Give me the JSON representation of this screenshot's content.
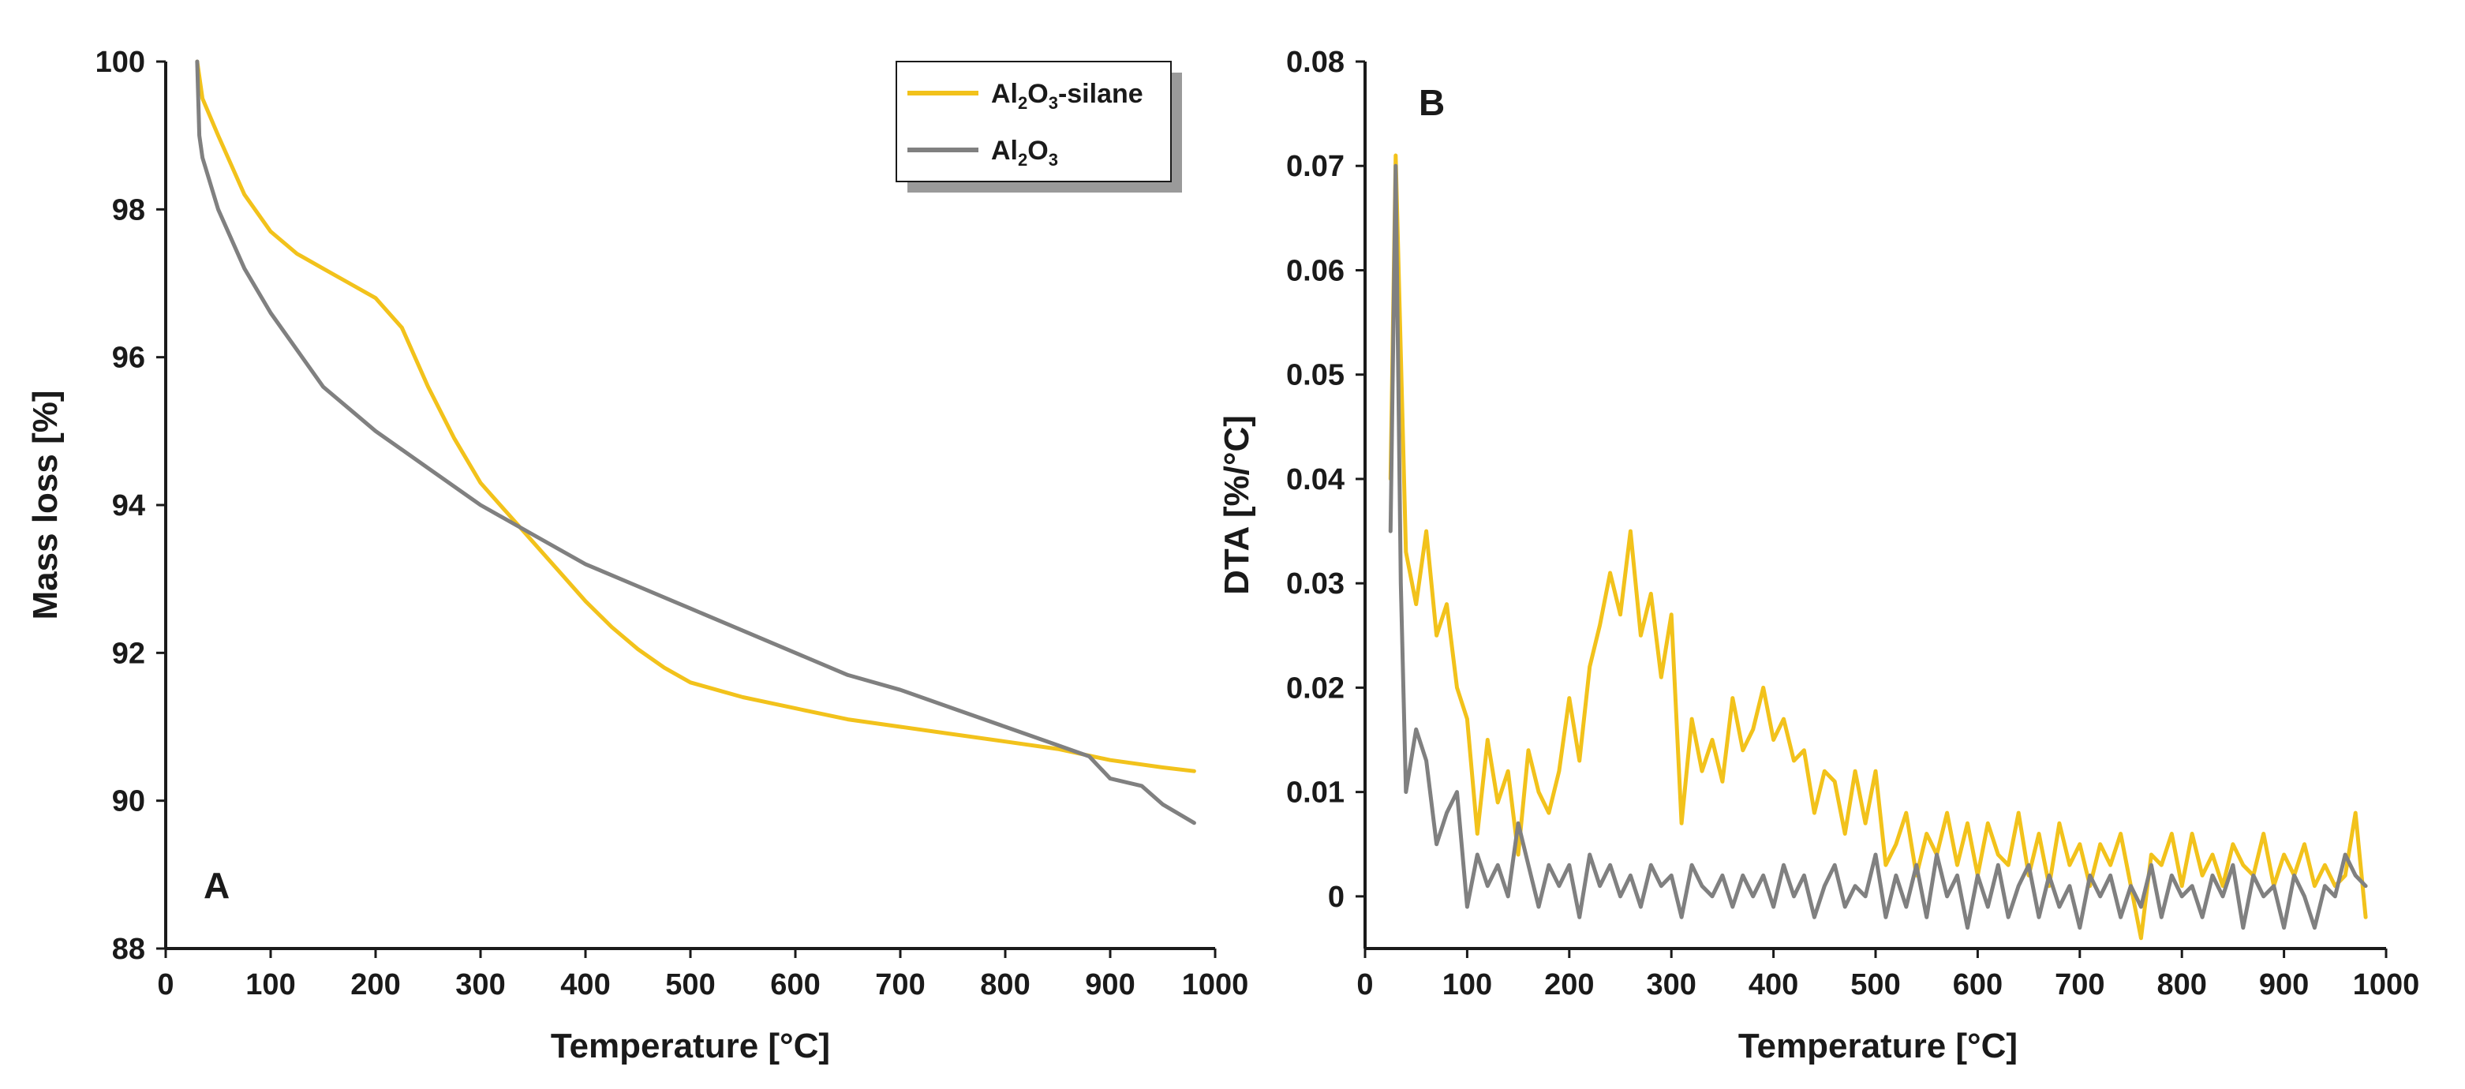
{
  "colors": {
    "silane": "#f2c21b",
    "alumina": "#808080",
    "axis": "#1a1a1a",
    "legend_shadow": "#9a9a9a"
  },
  "chart_data": [
    {
      "type": "line",
      "panel_label": "A",
      "xlabel": "Temperature [°C]",
      "ylabel": "Mass loss [%]",
      "xlim": [
        0,
        1000
      ],
      "ylim": [
        88,
        100
      ],
      "xticks": [
        "0",
        "100",
        "200",
        "300",
        "400",
        "500",
        "600",
        "700",
        "800",
        "900",
        "1000"
      ],
      "yticks": [
        "88",
        "90",
        "92",
        "94",
        "96",
        "98",
        "100"
      ],
      "legend": {
        "position": "top-right",
        "entries": [
          {
            "text": "Al",
            "sub1": "2",
            "mid": "O",
            "sub2": "3",
            "suffix": "-silane",
            "color_key": "silane"
          },
          {
            "text": "Al",
            "sub1": "2",
            "mid": "O",
            "sub2": "3",
            "suffix": "",
            "color_key": "alumina"
          }
        ]
      },
      "series": [
        {
          "name": "Al2O3-silane",
          "color_key": "silane",
          "x": [
            30,
            35,
            50,
            75,
            100,
            125,
            150,
            175,
            200,
            225,
            250,
            275,
            300,
            325,
            350,
            375,
            400,
            425,
            450,
            475,
            500,
            525,
            550,
            600,
            650,
            700,
            750,
            800,
            850,
            900,
            950,
            980
          ],
          "y": [
            100,
            99.5,
            99.0,
            98.2,
            97.7,
            97.4,
            97.2,
            97.0,
            96.8,
            96.4,
            95.6,
            94.9,
            94.3,
            93.9,
            93.5,
            93.1,
            92.7,
            92.35,
            92.05,
            91.8,
            91.6,
            91.5,
            91.4,
            91.25,
            91.1,
            91.0,
            90.9,
            90.8,
            90.7,
            90.55,
            90.45,
            90.4
          ]
        },
        {
          "name": "Al2O3",
          "color_key": "alumina",
          "x": [
            30,
            32,
            35,
            50,
            75,
            100,
            125,
            150,
            175,
            200,
            250,
            300,
            350,
            400,
            450,
            500,
            550,
            600,
            650,
            700,
            750,
            800,
            850,
            880,
            900,
            930,
            950,
            980
          ],
          "y": [
            100,
            99.0,
            98.7,
            98.0,
            97.2,
            96.6,
            96.1,
            95.6,
            95.3,
            95.0,
            94.5,
            94.0,
            93.6,
            93.2,
            92.9,
            92.6,
            92.3,
            92.0,
            91.7,
            91.5,
            91.25,
            91.0,
            90.75,
            90.6,
            90.3,
            90.2,
            89.95,
            89.7
          ]
        }
      ]
    },
    {
      "type": "line",
      "panel_label": "B",
      "xlabel": "Temperature [°C]",
      "ylabel": "DTA [%/°C]",
      "xlim": [
        0,
        1000
      ],
      "ylim": [
        -0.005,
        0.08
      ],
      "xticks": [
        "0",
        "100",
        "200",
        "300",
        "400",
        "500",
        "600",
        "700",
        "800",
        "900",
        "1000"
      ],
      "yticks": [
        "0",
        "0.01",
        "0.02",
        "0.03",
        "0.04",
        "0.05",
        "0.06",
        "0.07",
        "0.08"
      ],
      "ytick_values": [
        0,
        0.01,
        0.02,
        0.03,
        0.04,
        0.05,
        0.06,
        0.07,
        0.08
      ],
      "series": [
        {
          "name": "Al2O3-silane",
          "color_key": "silane",
          "x": [
            25,
            30,
            40,
            50,
            60,
            70,
            80,
            90,
            100,
            110,
            120,
            130,
            140,
            150,
            160,
            170,
            180,
            190,
            200,
            210,
            220,
            230,
            240,
            250,
            260,
            270,
            280,
            290,
            300,
            310,
            320,
            330,
            340,
            350,
            360,
            370,
            380,
            390,
            400,
            410,
            420,
            430,
            440,
            450,
            460,
            470,
            480,
            490,
            500,
            510,
            520,
            530,
            540,
            550,
            560,
            570,
            580,
            590,
            600,
            610,
            620,
            630,
            640,
            650,
            660,
            670,
            680,
            690,
            700,
            710,
            720,
            730,
            740,
            750,
            760,
            770,
            780,
            790,
            800,
            810,
            820,
            830,
            840,
            850,
            860,
            870,
            880,
            890,
            900,
            910,
            920,
            930,
            940,
            950,
            960,
            970,
            980
          ],
          "y": [
            0.04,
            0.071,
            0.033,
            0.028,
            0.035,
            0.025,
            0.028,
            0.02,
            0.017,
            0.006,
            0.015,
            0.009,
            0.012,
            0.004,
            0.014,
            0.01,
            0.008,
            0.012,
            0.019,
            0.013,
            0.022,
            0.026,
            0.031,
            0.027,
            0.035,
            0.025,
            0.029,
            0.021,
            0.027,
            0.007,
            0.017,
            0.012,
            0.015,
            0.011,
            0.019,
            0.014,
            0.016,
            0.02,
            0.015,
            0.017,
            0.013,
            0.014,
            0.008,
            0.012,
            0.011,
            0.006,
            0.012,
            0.007,
            0.012,
            0.003,
            0.005,
            0.008,
            0.002,
            0.006,
            0.004,
            0.008,
            0.003,
            0.007,
            0.002,
            0.007,
            0.004,
            0.003,
            0.008,
            0.002,
            0.006,
            0.001,
            0.007,
            0.003,
            0.005,
            0.001,
            0.005,
            0.003,
            0.006,
            0.001,
            -0.004,
            0.004,
            0.003,
            0.006,
            0.001,
            0.006,
            0.002,
            0.004,
            0.001,
            0.005,
            0.003,
            0.002,
            0.006,
            0.001,
            0.004,
            0.002,
            0.005,
            0.001,
            0.003,
            0.001,
            0.002,
            0.008,
            -0.002
          ]
        },
        {
          "name": "Al2O3",
          "color_key": "alumina",
          "x": [
            25,
            30,
            35,
            40,
            50,
            60,
            70,
            80,
            90,
            100,
            110,
            120,
            130,
            140,
            150,
            160,
            170,
            180,
            190,
            200,
            210,
            220,
            230,
            240,
            250,
            260,
            270,
            280,
            290,
            300,
            310,
            320,
            330,
            340,
            350,
            360,
            370,
            380,
            390,
            400,
            410,
            420,
            430,
            440,
            450,
            460,
            470,
            480,
            490,
            500,
            510,
            520,
            530,
            540,
            550,
            560,
            570,
            580,
            590,
            600,
            610,
            620,
            630,
            640,
            650,
            660,
            670,
            680,
            690,
            700,
            710,
            720,
            730,
            740,
            750,
            760,
            770,
            780,
            790,
            800,
            810,
            820,
            830,
            840,
            850,
            860,
            870,
            880,
            890,
            900,
            910,
            920,
            930,
            940,
            950,
            960,
            970,
            980
          ],
          "y": [
            0.035,
            0.07,
            0.03,
            0.01,
            0.016,
            0.013,
            0.005,
            0.008,
            0.01,
            -0.001,
            0.004,
            0.001,
            0.003,
            0.0,
            0.007,
            0.003,
            -0.001,
            0.003,
            0.001,
            0.003,
            -0.002,
            0.004,
            0.001,
            0.003,
            0.0,
            0.002,
            -0.001,
            0.003,
            0.001,
            0.002,
            -0.002,
            0.003,
            0.001,
            0.0,
            0.002,
            -0.001,
            0.002,
            0.0,
            0.002,
            -0.001,
            0.003,
            0.0,
            0.002,
            -0.002,
            0.001,
            0.003,
            -0.001,
            0.001,
            0.0,
            0.004,
            -0.002,
            0.002,
            -0.001,
            0.003,
            -0.002,
            0.004,
            0.0,
            0.002,
            -0.003,
            0.002,
            -0.001,
            0.003,
            -0.002,
            0.001,
            0.003,
            -0.002,
            0.002,
            -0.001,
            0.001,
            -0.003,
            0.002,
            0.0,
            0.002,
            -0.002,
            0.001,
            -0.001,
            0.003,
            -0.002,
            0.002,
            0.0,
            0.001,
            -0.002,
            0.002,
            0.0,
            0.003,
            -0.003,
            0.002,
            0.0,
            0.001,
            -0.003,
            0.002,
            0.0,
            -0.003,
            0.001,
            0.0,
            0.004,
            0.002,
            0.001
          ]
        }
      ]
    }
  ]
}
